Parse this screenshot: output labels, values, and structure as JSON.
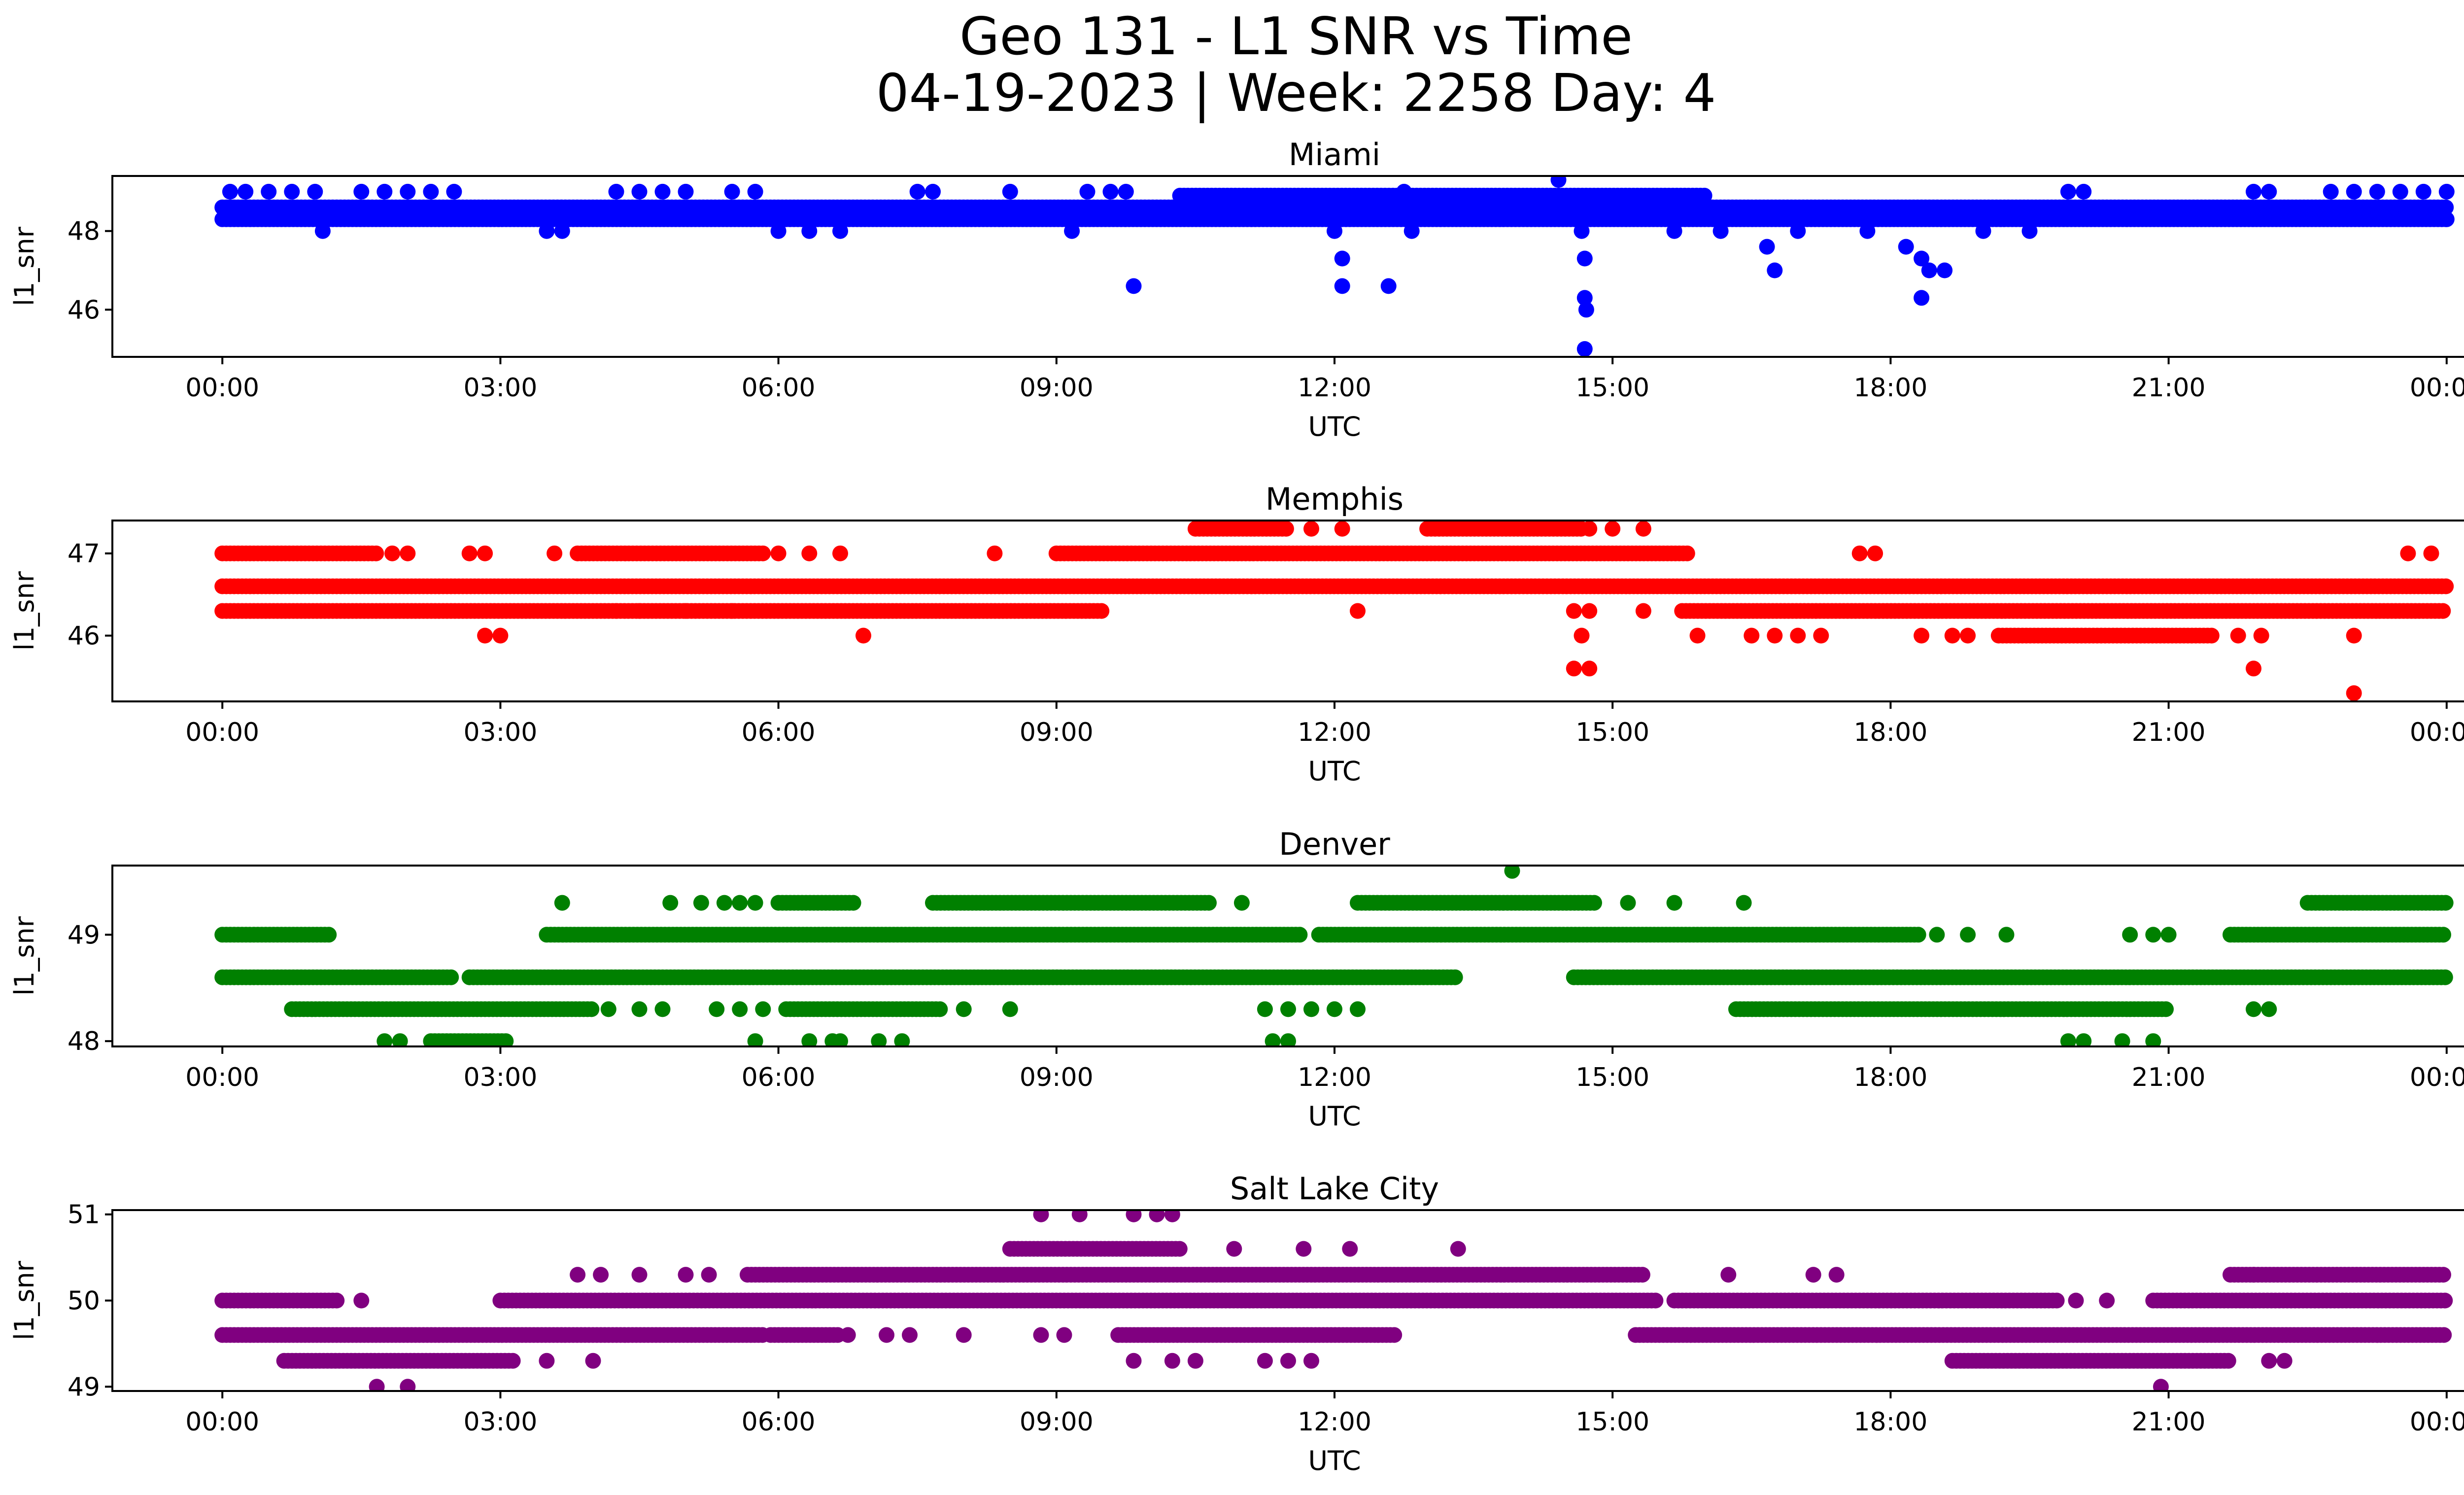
{
  "figure": {
    "title_line1": "Geo 131 - L1 SNR vs Time",
    "title_line2": "04-19-2023 | Week: 2258 Day: 4"
  },
  "chart_data": [
    {
      "type": "scatter",
      "title": "Miami",
      "xlabel": "UTC",
      "ylabel": "l1_snr",
      "color": "#0000ff",
      "xlim": [
        "00:00",
        "24:00"
      ],
      "ylim": [
        44.8,
        49.4
      ],
      "x_ticks": [
        "00:00",
        "03:00",
        "06:00",
        "09:00",
        "12:00",
        "15:00",
        "18:00",
        "21:00",
        "00:00"
      ],
      "y_ticks": [
        46,
        48
      ],
      "bands": [
        {
          "y": 48.3,
          "ranges": [
            [
              "00:00",
              "24:00"
            ]
          ]
        },
        {
          "y": 48.6,
          "ranges": [
            [
              "00:00",
              "24:00"
            ]
          ]
        },
        {
          "y": 48.9,
          "ranges": [
            [
              "10:20",
              "16:00"
            ]
          ]
        }
      ],
      "points": [
        {
          "x": "00:05",
          "y": 49.0
        },
        {
          "x": "00:15",
          "y": 49.0
        },
        {
          "x": "00:30",
          "y": 49.0
        },
        {
          "x": "00:45",
          "y": 49.0
        },
        {
          "x": "01:00",
          "y": 49.0
        },
        {
          "x": "01:05",
          "y": 48.0
        },
        {
          "x": "01:30",
          "y": 49.0
        },
        {
          "x": "01:45",
          "y": 49.0
        },
        {
          "x": "02:00",
          "y": 49.0
        },
        {
          "x": "02:15",
          "y": 49.0
        },
        {
          "x": "02:30",
          "y": 49.0
        },
        {
          "x": "03:30",
          "y": 48.0
        },
        {
          "x": "03:40",
          "y": 48.0
        },
        {
          "x": "04:15",
          "y": 49.0
        },
        {
          "x": "04:30",
          "y": 49.0
        },
        {
          "x": "04:45",
          "y": 49.0
        },
        {
          "x": "05:00",
          "y": 49.0
        },
        {
          "x": "05:30",
          "y": 49.0
        },
        {
          "x": "05:45",
          "y": 49.0
        },
        {
          "x": "06:00",
          "y": 48.0
        },
        {
          "x": "06:20",
          "y": 48.0
        },
        {
          "x": "06:40",
          "y": 48.0
        },
        {
          "x": "07:30",
          "y": 49.0
        },
        {
          "x": "07:40",
          "y": 49.0
        },
        {
          "x": "08:30",
          "y": 49.0
        },
        {
          "x": "09:10",
          "y": 48.0
        },
        {
          "x": "09:20",
          "y": 49.0
        },
        {
          "x": "09:35",
          "y": 49.0
        },
        {
          "x": "09:45",
          "y": 49.0
        },
        {
          "x": "09:50",
          "y": 46.6
        },
        {
          "x": "12:00",
          "y": 48.0
        },
        {
          "x": "12:05",
          "y": 47.3
        },
        {
          "x": "12:05",
          "y": 46.6
        },
        {
          "x": "12:35",
          "y": 46.6
        },
        {
          "x": "12:45",
          "y": 49.0
        },
        {
          "x": "12:50",
          "y": 48.0
        },
        {
          "x": "14:25",
          "y": 49.3
        },
        {
          "x": "14:40",
          "y": 48.0
        },
        {
          "x": "14:42",
          "y": 47.3
        },
        {
          "x": "14:42",
          "y": 46.3
        },
        {
          "x": "14:43",
          "y": 46.0
        },
        {
          "x": "14:42",
          "y": 45.0
        },
        {
          "x": "15:40",
          "y": 48.0
        },
        {
          "x": "16:10",
          "y": 48.0
        },
        {
          "x": "16:40",
          "y": 47.6
        },
        {
          "x": "16:45",
          "y": 47.0
        },
        {
          "x": "17:00",
          "y": 48.0
        },
        {
          "x": "17:45",
          "y": 48.0
        },
        {
          "x": "18:10",
          "y": 47.6
        },
        {
          "x": "18:20",
          "y": 47.3
        },
        {
          "x": "18:25",
          "y": 47.0
        },
        {
          "x": "18:20",
          "y": 46.3
        },
        {
          "x": "18:35",
          "y": 47.0
        },
        {
          "x": "19:00",
          "y": 48.0
        },
        {
          "x": "19:30",
          "y": 48.0
        },
        {
          "x": "19:55",
          "y": 49.0
        },
        {
          "x": "20:05",
          "y": 49.0
        },
        {
          "x": "21:55",
          "y": 49.0
        },
        {
          "x": "22:05",
          "y": 49.0
        },
        {
          "x": "22:45",
          "y": 49.0
        },
        {
          "x": "23:00",
          "y": 49.0
        },
        {
          "x": "23:15",
          "y": 49.0
        },
        {
          "x": "23:30",
          "y": 49.0
        },
        {
          "x": "23:45",
          "y": 49.0
        },
        {
          "x": "24:00",
          "y": 49.0
        },
        {
          "x": "24:00",
          "y": 48.3
        }
      ]
    },
    {
      "type": "scatter",
      "title": "Memphis",
      "xlabel": "UTC",
      "ylabel": "l1_snr",
      "color": "#ff0000",
      "xlim": [
        "00:00",
        "24:00"
      ],
      "ylim": [
        45.2,
        47.4
      ],
      "x_ticks": [
        "00:00",
        "03:00",
        "06:00",
        "09:00",
        "12:00",
        "15:00",
        "18:00",
        "21:00",
        "00:00"
      ],
      "y_ticks": [
        46,
        47
      ],
      "bands": [
        {
          "y": 46.6,
          "ranges": [
            [
              "00:00",
              "24:00"
            ]
          ]
        },
        {
          "y": 46.3,
          "ranges": [
            [
              "00:00",
              "09:30"
            ],
            [
              "15:45",
              "24:00"
            ]
          ]
        },
        {
          "y": 47.0,
          "ranges": [
            [
              "00:00",
              "01:40"
            ],
            [
              "03:50",
              "05:50"
            ],
            [
              "09:00",
              "15:50"
            ]
          ]
        },
        {
          "y": 46.0,
          "ranges": [
            [
              "19:10",
              "21:30"
            ]
          ]
        },
        {
          "y": 47.3,
          "ranges": [
            [
              "10:30",
              "11:30"
            ],
            [
              "13:00",
              "14:40"
            ]
          ]
        }
      ],
      "points": [
        {
          "x": "01:50",
          "y": 47.0
        },
        {
          "x": "02:00",
          "y": 47.0
        },
        {
          "x": "02:40",
          "y": 47.0
        },
        {
          "x": "02:50",
          "y": 47.0
        },
        {
          "x": "02:50",
          "y": 46.0
        },
        {
          "x": "03:00",
          "y": 46.0
        },
        {
          "x": "03:35",
          "y": 47.0
        },
        {
          "x": "04:15",
          "y": 46.3
        },
        {
          "x": "04:30",
          "y": 46.3
        },
        {
          "x": "05:00",
          "y": 46.3
        },
        {
          "x": "05:30",
          "y": 46.3
        },
        {
          "x": "06:00",
          "y": 47.0
        },
        {
          "x": "06:20",
          "y": 47.0
        },
        {
          "x": "06:40",
          "y": 47.0
        },
        {
          "x": "06:55",
          "y": 46.0
        },
        {
          "x": "08:20",
          "y": 47.0
        },
        {
          "x": "11:45",
          "y": 47.3
        },
        {
          "x": "12:05",
          "y": 47.3
        },
        {
          "x": "12:15",
          "y": 46.3
        },
        {
          "x": "14:45",
          "y": 47.3
        },
        {
          "x": "15:00",
          "y": 47.3
        },
        {
          "x": "15:20",
          "y": 47.3
        },
        {
          "x": "14:35",
          "y": 46.3
        },
        {
          "x": "14:45",
          "y": 46.3
        },
        {
          "x": "14:40",
          "y": 46.0
        },
        {
          "x": "14:35",
          "y": 45.6
        },
        {
          "x": "14:45",
          "y": 45.6
        },
        {
          "x": "15:20",
          "y": 46.3
        },
        {
          "x": "15:55",
          "y": 46.0
        },
        {
          "x": "16:30",
          "y": 46.0
        },
        {
          "x": "16:45",
          "y": 46.0
        },
        {
          "x": "17:00",
          "y": 46.0
        },
        {
          "x": "17:15",
          "y": 46.0
        },
        {
          "x": "17:40",
          "y": 47.0
        },
        {
          "x": "17:50",
          "y": 47.0
        },
        {
          "x": "18:20",
          "y": 46.0
        },
        {
          "x": "18:40",
          "y": 46.0
        },
        {
          "x": "18:50",
          "y": 46.0
        },
        {
          "x": "21:45",
          "y": 46.0
        },
        {
          "x": "22:00",
          "y": 46.0
        },
        {
          "x": "21:55",
          "y": 45.6
        },
        {
          "x": "23:00",
          "y": 46.0
        },
        {
          "x": "23:00",
          "y": 45.3
        },
        {
          "x": "23:35",
          "y": 47.0
        },
        {
          "x": "23:50",
          "y": 47.0
        }
      ]
    },
    {
      "type": "scatter",
      "title": "Denver",
      "xlabel": "UTC",
      "ylabel": "l1_snr",
      "color": "#008000",
      "xlim": [
        "00:00",
        "24:00"
      ],
      "ylim": [
        47.95,
        49.65
      ],
      "x_ticks": [
        "00:00",
        "03:00",
        "06:00",
        "09:00",
        "12:00",
        "15:00",
        "18:00",
        "21:00",
        "00:00"
      ],
      "y_ticks": [
        48,
        49
      ],
      "bands": [
        {
          "y": 49.0,
          "ranges": [
            [
              "00:00",
              "01:10"
            ],
            [
              "03:30",
              "11:40"
            ],
            [
              "11:50",
              "18:20"
            ],
            [
              "21:40",
              "24:00"
            ]
          ]
        },
        {
          "y": 48.6,
          "ranges": [
            [
              "00:00",
              "02:30"
            ],
            [
              "02:40",
              "13:20"
            ],
            [
              "14:35",
              "24:00"
            ]
          ]
        },
        {
          "y": 48.3,
          "ranges": [
            [
              "00:45",
              "04:00"
            ],
            [
              "06:05",
              "07:45"
            ],
            [
              "16:20",
              "21:00"
            ]
          ]
        },
        {
          "y": 49.3,
          "ranges": [
            [
              "06:00",
              "06:50"
            ],
            [
              "07:40",
              "10:40"
            ],
            [
              "12:15",
              "14:50"
            ],
            [
              "22:30",
              "24:00"
            ]
          ]
        },
        {
          "y": 48.0,
          "ranges": [
            [
              "02:15",
              "03:05"
            ]
          ]
        }
      ],
      "points": [
        {
          "x": "01:45",
          "y": 48.0
        },
        {
          "x": "01:55",
          "y": 48.0
        },
        {
          "x": "03:40",
          "y": 49.3
        },
        {
          "x": "04:10",
          "y": 48.3
        },
        {
          "x": "04:30",
          "y": 48.3
        },
        {
          "x": "04:45",
          "y": 48.3
        },
        {
          "x": "04:50",
          "y": 49.3
        },
        {
          "x": "05:10",
          "y": 49.3
        },
        {
          "x": "05:25",
          "y": 49.3
        },
        {
          "x": "05:35",
          "y": 49.3
        },
        {
          "x": "05:45",
          "y": 49.3
        },
        {
          "x": "05:20",
          "y": 48.3
        },
        {
          "x": "05:35",
          "y": 48.3
        },
        {
          "x": "05:50",
          "y": 48.3
        },
        {
          "x": "05:45",
          "y": 48.0
        },
        {
          "x": "06:20",
          "y": 48.0
        },
        {
          "x": "06:35",
          "y": 48.0
        },
        {
          "x": "06:40",
          "y": 48.0
        },
        {
          "x": "07:05",
          "y": 48.0
        },
        {
          "x": "07:20",
          "y": 48.0
        },
        {
          "x": "08:00",
          "y": 48.3
        },
        {
          "x": "08:30",
          "y": 48.3
        },
        {
          "x": "11:00",
          "y": 49.3
        },
        {
          "x": "11:15",
          "y": 48.3
        },
        {
          "x": "11:30",
          "y": 48.3
        },
        {
          "x": "11:45",
          "y": 48.3
        },
        {
          "x": "12:00",
          "y": 48.3
        },
        {
          "x": "12:15",
          "y": 48.3
        },
        {
          "x": "11:20",
          "y": 48.0
        },
        {
          "x": "11:30",
          "y": 48.0
        },
        {
          "x": "13:55",
          "y": 49.6
        },
        {
          "x": "15:10",
          "y": 49.3
        },
        {
          "x": "15:40",
          "y": 49.3
        },
        {
          "x": "16:25",
          "y": 49.3
        },
        {
          "x": "18:30",
          "y": 49.0
        },
        {
          "x": "18:50",
          "y": 49.0
        },
        {
          "x": "19:15",
          "y": 49.0
        },
        {
          "x": "19:55",
          "y": 48.0
        },
        {
          "x": "20:05",
          "y": 48.0
        },
        {
          "x": "20:30",
          "y": 48.0
        },
        {
          "x": "20:50",
          "y": 48.0
        },
        {
          "x": "20:35",
          "y": 49.0
        },
        {
          "x": "20:50",
          "y": 49.0
        },
        {
          "x": "21:00",
          "y": 49.0
        },
        {
          "x": "21:55",
          "y": 48.3
        },
        {
          "x": "22:05",
          "y": 48.3
        }
      ]
    },
    {
      "type": "scatter",
      "title": "Salt Lake City",
      "xlabel": "UTC",
      "ylabel": "l1_snr",
      "color": "#800080",
      "xlim": [
        "00:00",
        "24:00"
      ],
      "ylim": [
        48.95,
        51.05
      ],
      "x_ticks": [
        "00:00",
        "03:00",
        "06:00",
        "09:00",
        "12:00",
        "15:00",
        "18:00",
        "21:00",
        "00:00"
      ],
      "y_ticks": [
        49,
        50,
        51
      ],
      "bands": [
        {
          "y": 50.0,
          "ranges": [
            [
              "00:00",
              "01:15"
            ],
            [
              "03:00",
              "15:30"
            ],
            [
              "15:40",
              "19:50"
            ],
            [
              "20:50",
              "24:00"
            ]
          ]
        },
        {
          "y": 49.6,
          "ranges": [
            [
              "00:00",
              "05:50"
            ],
            [
              "05:55",
              "06:40"
            ],
            [
              "09:40",
              "12:40"
            ],
            [
              "15:15",
              "24:00"
            ]
          ]
        },
        {
          "y": 49.3,
          "ranges": [
            [
              "00:40",
              "03:10"
            ],
            [
              "18:40",
              "21:40"
            ]
          ]
        },
        {
          "y": 50.3,
          "ranges": [
            [
              "05:40",
              "15:20"
            ],
            [
              "21:40",
              "24:00"
            ]
          ]
        },
        {
          "y": 50.6,
          "ranges": [
            [
              "08:30",
              "10:20"
            ]
          ]
        }
      ],
      "points": [
        {
          "x": "01:30",
          "y": 50.0
        },
        {
          "x": "01:40",
          "y": 49.0
        },
        {
          "x": "02:00",
          "y": 49.0
        },
        {
          "x": "03:30",
          "y": 49.3
        },
        {
          "x": "04:00",
          "y": 49.3
        },
        {
          "x": "03:50",
          "y": 50.3
        },
        {
          "x": "04:05",
          "y": 50.3
        },
        {
          "x": "04:30",
          "y": 50.3
        },
        {
          "x": "05:00",
          "y": 50.3
        },
        {
          "x": "05:15",
          "y": 50.3
        },
        {
          "x": "06:45",
          "y": 49.6
        },
        {
          "x": "07:10",
          "y": 49.6
        },
        {
          "x": "07:25",
          "y": 49.6
        },
        {
          "x": "08:00",
          "y": 49.6
        },
        {
          "x": "08:50",
          "y": 49.6
        },
        {
          "x": "09:05",
          "y": 49.6
        },
        {
          "x": "08:50",
          "y": 51.0
        },
        {
          "x": "09:15",
          "y": 51.0
        },
        {
          "x": "09:50",
          "y": 51.0
        },
        {
          "x": "10:05",
          "y": 51.0
        },
        {
          "x": "10:15",
          "y": 51.0
        },
        {
          "x": "09:50",
          "y": 49.3
        },
        {
          "x": "10:15",
          "y": 49.3
        },
        {
          "x": "10:30",
          "y": 49.3
        },
        {
          "x": "10:55",
          "y": 50.6
        },
        {
          "x": "11:15",
          "y": 49.3
        },
        {
          "x": "11:30",
          "y": 49.3
        },
        {
          "x": "11:45",
          "y": 49.3
        },
        {
          "x": "11:40",
          "y": 50.6
        },
        {
          "x": "12:10",
          "y": 50.6
        },
        {
          "x": "13:20",
          "y": 50.6
        },
        {
          "x": "16:15",
          "y": 50.3
        },
        {
          "x": "17:10",
          "y": 50.3
        },
        {
          "x": "17:25",
          "y": 50.3
        },
        {
          "x": "20:00",
          "y": 50.0
        },
        {
          "x": "20:20",
          "y": 50.0
        },
        {
          "x": "20:55",
          "y": 49.0
        },
        {
          "x": "21:55",
          "y": 50.3
        },
        {
          "x": "22:05",
          "y": 49.3
        },
        {
          "x": "22:15",
          "y": 49.3
        }
      ]
    }
  ]
}
